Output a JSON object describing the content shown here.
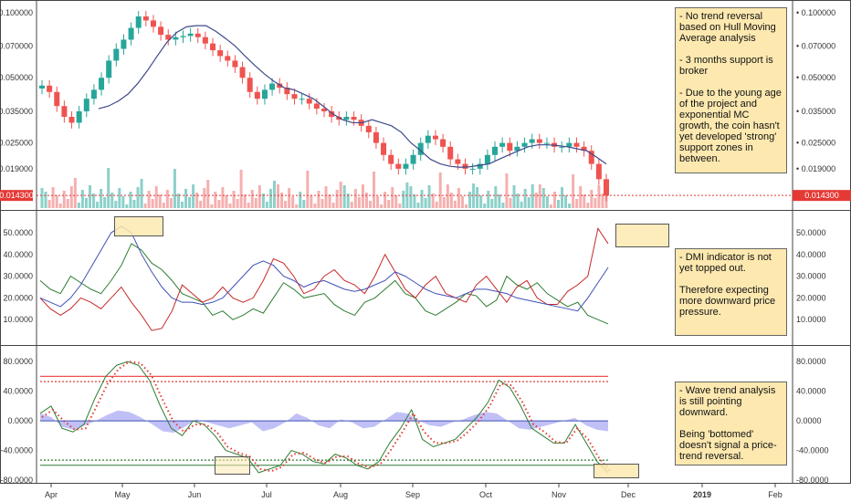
{
  "chart_data": [
    {
      "type": "candlestick",
      "panel": "price",
      "y_scale": "log",
      "ylim": [
        0.0125,
        0.11
      ],
      "y_ticks": [
        "0.100000",
        "0.070000",
        "0.050000",
        "0.035000",
        "0.025000",
        "0.019000"
      ],
      "last_price_label": "0.014300",
      "last_price": 0.0143,
      "x_ticks": [
        "Apr",
        "May",
        "Jun",
        "Jul",
        "Aug",
        "Sep",
        "Oct",
        "Nov",
        "Dec",
        "2019",
        "Feb"
      ],
      "series": [
        {
          "name": "close",
          "values": [
            0.046,
            0.043,
            0.037,
            0.033,
            0.031,
            0.035,
            0.04,
            0.044,
            0.05,
            0.06,
            0.068,
            0.075,
            0.085,
            0.096,
            0.092,
            0.086,
            0.079,
            0.075,
            0.077,
            0.078,
            0.08,
            0.077,
            0.072,
            0.067,
            0.063,
            0.06,
            0.056,
            0.05,
            0.043,
            0.04,
            0.044,
            0.047,
            0.045,
            0.042,
            0.04,
            0.04,
            0.038,
            0.036,
            0.035,
            0.033,
            0.032,
            0.033,
            0.032,
            0.03,
            0.028,
            0.025,
            0.022,
            0.02,
            0.019,
            0.02,
            0.022,
            0.025,
            0.027,
            0.026,
            0.024,
            0.021,
            0.02,
            0.019,
            0.019,
            0.02,
            0.022,
            0.024,
            0.025,
            0.023,
            0.024,
            0.025,
            0.026,
            0.025,
            0.025,
            0.024,
            0.024,
            0.025,
            0.024,
            0.023,
            0.02,
            0.017,
            0.0143
          ]
        },
        {
          "name": "hull_ma",
          "values": [
            0.036,
            0.037,
            0.039,
            0.042,
            0.047,
            0.054,
            0.063,
            0.073,
            0.081,
            0.086,
            0.087,
            0.087,
            0.082,
            0.076,
            0.07,
            0.063,
            0.057,
            0.052,
            0.048,
            0.045,
            0.044,
            0.042,
            0.04,
            0.037,
            0.034,
            0.032,
            0.031,
            0.031,
            0.032,
            0.031,
            0.03,
            0.028,
            0.025,
            0.023,
            0.021,
            0.02,
            0.0195,
            0.0193,
            0.0194,
            0.0197,
            0.02,
            0.021,
            0.022,
            0.023,
            0.024,
            0.0245,
            0.0245,
            0.0243,
            0.024,
            0.0235,
            0.023,
            0.0215,
            0.02
          ]
        }
      ]
    },
    {
      "type": "line",
      "panel": "dmi",
      "ylim": [
        0,
        58
      ],
      "y_ticks": [
        "50.0000",
        "40.0000",
        "30.0000",
        "20.0000",
        "10.0000"
      ],
      "series": [
        {
          "name": "",
          "color": "#2e7d32",
          "values": [
            28,
            24,
            22,
            30,
            27,
            24,
            22,
            28,
            35,
            45,
            42,
            36,
            33,
            28,
            22,
            20,
            18,
            12,
            14,
            10,
            12,
            15,
            13,
            20,
            27,
            24,
            20,
            21,
            22,
            17,
            14,
            12,
            18,
            20,
            24,
            28,
            22,
            20,
            14,
            12,
            15,
            18,
            22,
            21,
            16,
            19,
            30,
            26,
            24,
            27,
            22,
            19,
            16,
            18,
            12,
            10,
            8
          ]
        },
        {
          "name": "",
          "color": "#c62828",
          "values": [
            20,
            15,
            12,
            15,
            20,
            18,
            15,
            20,
            25,
            18,
            12,
            5,
            6,
            14,
            26,
            22,
            18,
            20,
            25,
            20,
            18,
            20,
            28,
            38,
            36,
            30,
            22,
            24,
            30,
            33,
            28,
            26,
            22,
            30,
            40,
            32,
            24,
            20,
            26,
            30,
            22,
            20,
            18,
            26,
            30,
            24,
            18,
            25,
            28,
            20,
            17,
            17,
            23,
            26,
            30,
            52,
            45
          ]
        },
        {
          "name": "",
          "color": "#3f51b5",
          "values": [
            20,
            18,
            16,
            20,
            26,
            34,
            42,
            50,
            53,
            50,
            40,
            32,
            25,
            20,
            18,
            18,
            17,
            18,
            20,
            25,
            30,
            35,
            37,
            35,
            30,
            28,
            25,
            27,
            28,
            26,
            24,
            23,
            24,
            26,
            28,
            32,
            30,
            27,
            24,
            22,
            21,
            20,
            22,
            24,
            24,
            23,
            22,
            20,
            19,
            18,
            17,
            16,
            15,
            14,
            20,
            27,
            34
          ]
        }
      ]
    },
    {
      "type": "line",
      "panel": "wavetrend",
      "ylim": [
        -80,
        95
      ],
      "y_ticks": [
        "80.0000",
        "40.0000",
        "0.0000",
        "-40.0000",
        "-80.0000"
      ],
      "overbought": [
        60,
        53
      ],
      "oversold": [
        -53,
        -60
      ],
      "series": [
        {
          "name": "",
          "color": "#2e7d32",
          "values": [
            10,
            20,
            -10,
            -15,
            -5,
            30,
            60,
            75,
            80,
            75,
            55,
            20,
            -10,
            -20,
            0,
            -5,
            -20,
            -40,
            -45,
            -50,
            -70,
            -65,
            -60,
            -40,
            -45,
            -55,
            -58,
            -45,
            -50,
            -60,
            -65,
            -55,
            -30,
            -10,
            15,
            -25,
            -35,
            -30,
            -25,
            -10,
            5,
            25,
            55,
            45,
            20,
            -10,
            -20,
            -30,
            -30,
            -5,
            -30,
            -55,
            -70
          ]
        },
        {
          "name": "",
          "color": "#e53935",
          "values": [
            5,
            15,
            0,
            -12,
            -10,
            20,
            50,
            70,
            80,
            78,
            62,
            30,
            0,
            -15,
            -5,
            -5,
            -15,
            -35,
            -43,
            -48,
            -65,
            -68,
            -62,
            -45,
            -43,
            -52,
            -57,
            -48,
            -48,
            -58,
            -63,
            -58,
            -38,
            -15,
            10,
            -15,
            -30,
            -30,
            -27,
            -15,
            0,
            20,
            50,
            48,
            25,
            -5,
            -15,
            -28,
            -30,
            -10,
            -25,
            -50,
            -68
          ]
        },
        {
          "name": "",
          "color": "#8c8cf0",
          "values": [
            10,
            5,
            -8,
            -12,
            -6,
            0,
            8,
            14,
            12,
            5,
            -4,
            -14,
            -16,
            -8,
            2,
            -2,
            -6,
            -10,
            -6,
            -2,
            -14,
            -10,
            -2,
            10,
            4,
            -6,
            -10,
            2,
            -2,
            -10,
            -8,
            2,
            12,
            10,
            0,
            -6,
            -8,
            -2,
            2,
            8,
            12,
            10,
            0,
            -10,
            -12,
            -8,
            -4,
            0,
            4,
            -6,
            -12,
            -14
          ]
        }
      ]
    }
  ],
  "notes": {
    "price": "- No trend reversal based on Hull Moving Average analysis\n\n- 3 months support is broker\n\n- Due to the young age of the project and exponential MC growth, the coin hasn't yet developed 'strong' support zones in between.",
    "dmi": "- DMI indicator is not yet topped out.\n\nTherefore expecting more downward price pressure.",
    "wt": "- Wave trend analysis is still pointing downward.\n\nBeing 'bottomed' doesn't signal a price-trend reversal."
  },
  "colors": {
    "up": "#26a69a",
    "down": "#ef5350",
    "price_line": "#e53935"
  }
}
